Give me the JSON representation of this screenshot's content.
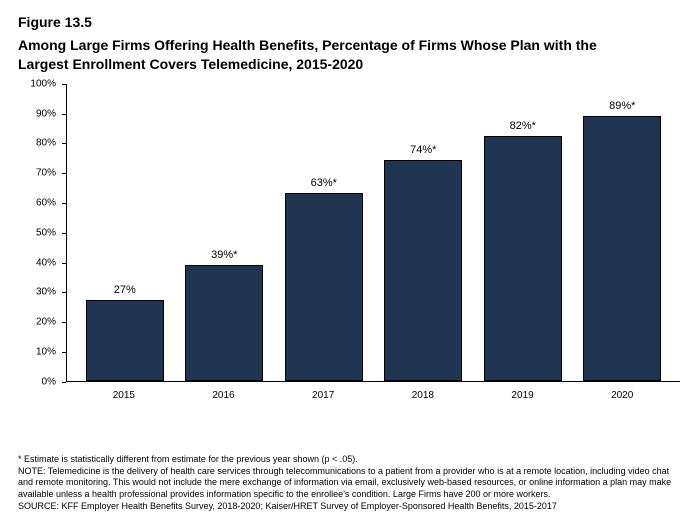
{
  "figure_label": "Figure 13.5",
  "title_line1": "Among Large Firms Offering Health Benefits, Percentage of Firms Whose Plan with the",
  "title_line2": "Largest Enrollment Covers Telemedicine, 2015-2020",
  "chart": {
    "type": "bar",
    "categories": [
      "2015",
      "2016",
      "2017",
      "2018",
      "2019",
      "2020"
    ],
    "values": [
      27,
      39,
      63,
      74,
      82,
      89
    ],
    "value_labels": [
      "27%",
      "39%*",
      "63%*",
      "74%*",
      "82%*",
      "89%*"
    ],
    "bar_color": "#1f3552",
    "bar_border": "#000000",
    "ylim": [
      0,
      100
    ],
    "ytick_step": 10,
    "y_ticks": [
      "0%",
      "10%",
      "20%",
      "30%",
      "40%",
      "50%",
      "60%",
      "70%",
      "80%",
      "90%",
      "100%"
    ],
    "background_color": "#ffffff",
    "axis_color": "#000000",
    "bar_width_pct": 78,
    "label_fontsize": 11,
    "tick_fontsize": 10
  },
  "footnote_sig": "* Estimate is statistically different from estimate for the previous year shown (p < .05).",
  "footnote_note": "NOTE: Telemedicine is the delivery of health care services through telecommunications to a patient from a provider who is at a remote location, including video chat and remote monitoring. This would not include the mere exchange of information via email, exclusively web-based resources, or online information a plan may make available unless a health professional provides information specific to the enrollee's condition. Large Firms have 200 or more workers.",
  "footnote_source": "SOURCE: KFF Employer Health Benefits Survey, 2018-2020; Kaiser/HRET Survey of Employer-Sponsored Health Benefits, 2015-2017"
}
